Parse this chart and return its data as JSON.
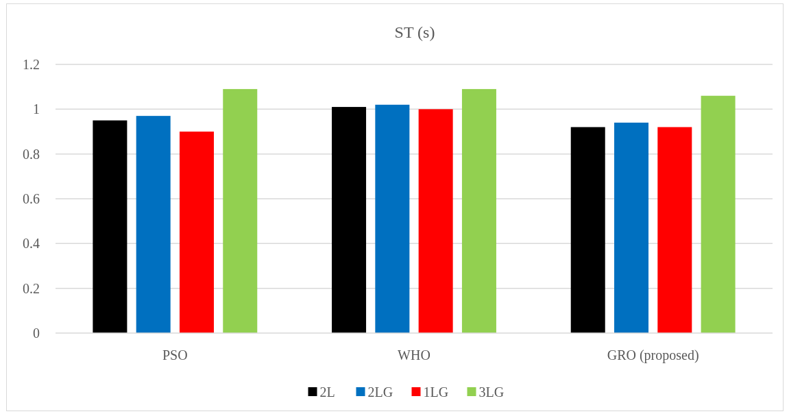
{
  "chart_data": {
    "type": "bar",
    "title": "ST (s)",
    "categories": [
      "PSO",
      "WHO",
      "GRO (proposed)"
    ],
    "series": [
      {
        "name": "2L",
        "color": "#000000",
        "values": [
          0.95,
          1.01,
          0.92
        ]
      },
      {
        "name": "2LG",
        "color": "#0070c0",
        "values": [
          0.97,
          1.02,
          0.94
        ]
      },
      {
        "name": "1LG",
        "color": "#ff0000",
        "values": [
          0.9,
          1.0,
          0.92
        ]
      },
      {
        "name": "3LG",
        "color": "#92d050",
        "values": [
          1.09,
          1.09,
          1.06
        ]
      }
    ],
    "ylim": [
      0,
      1.2
    ],
    "yticks": [
      0,
      0.2,
      0.4,
      0.6,
      0.8,
      1,
      1.2
    ],
    "grid": "y",
    "legend": "bottom"
  }
}
